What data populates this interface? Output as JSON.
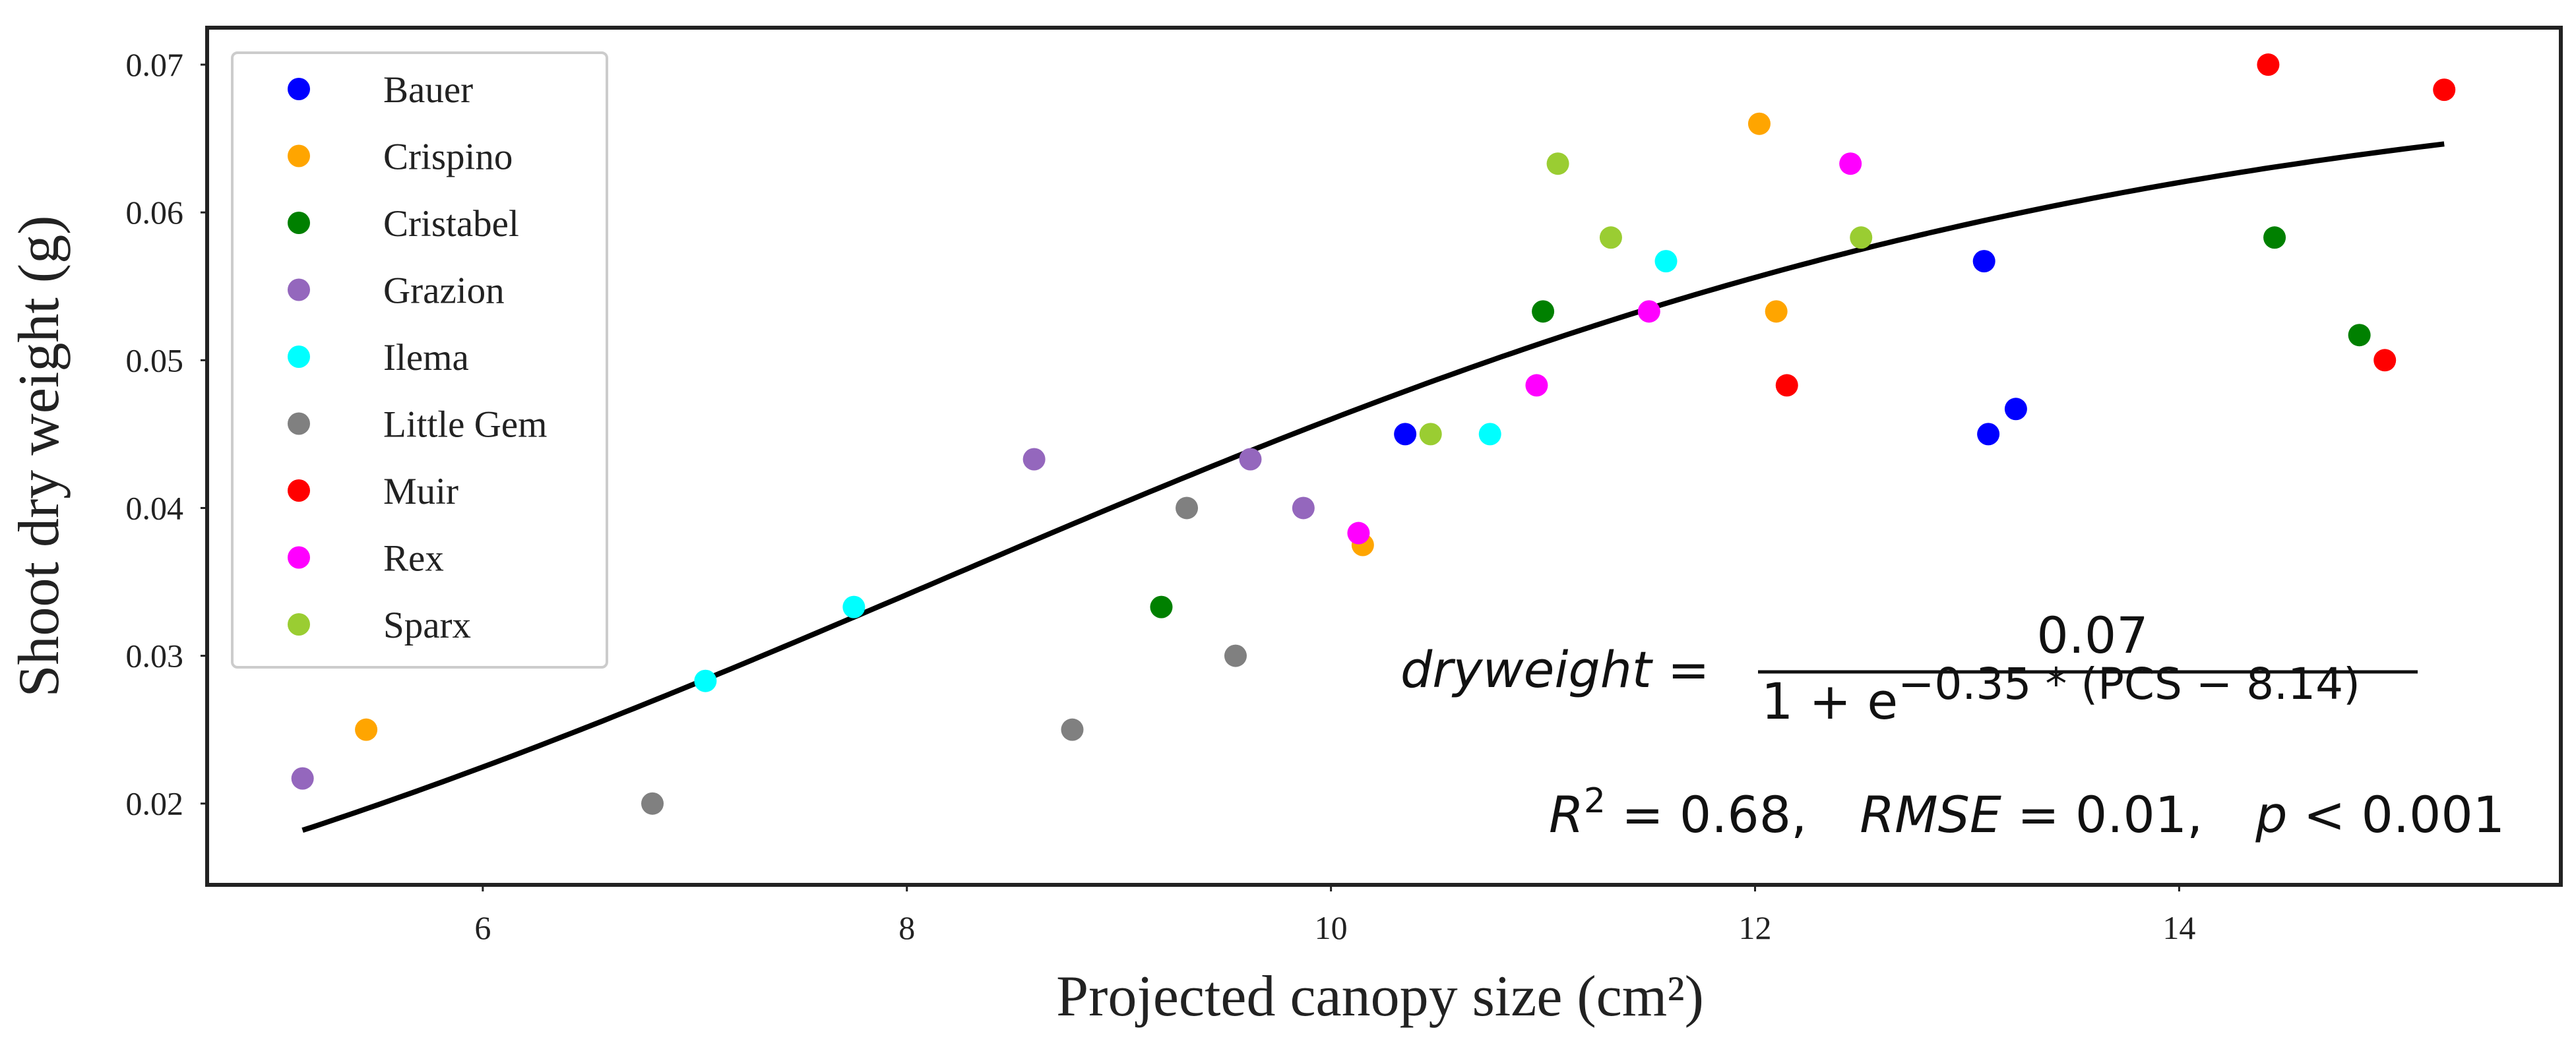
{
  "chart_data": {
    "type": "scatter",
    "title": "",
    "xlabel": "Projected canopy size (cm²)",
    "ylabel": "Shoot dry weight (g)",
    "xlim": [
      4.7,
      15.8
    ],
    "ylim": [
      0.0145,
      0.0725
    ],
    "xticks": [
      6,
      8,
      10,
      12,
      14
    ],
    "xtick_labels": [
      "6",
      "8",
      "10",
      "12",
      "14"
    ],
    "yticks": [
      0.02,
      0.03,
      0.04,
      0.05,
      0.06,
      0.07
    ],
    "ytick_labels": [
      "0.02",
      "0.03",
      "0.04",
      "0.05",
      "0.06",
      "0.07"
    ],
    "grid": false,
    "legend_position": "top-left",
    "series": [
      {
        "name": "Bauer",
        "color": "#0000ff",
        "points": [
          [
            10.35,
            0.045
          ],
          [
            13.08,
            0.0567
          ],
          [
            13.1,
            0.045
          ],
          [
            13.23,
            0.0467
          ]
        ]
      },
      {
        "name": "Crispino",
        "color": "#ffa500",
        "points": [
          [
            5.45,
            0.025
          ],
          [
            10.15,
            0.0375
          ],
          [
            12.02,
            0.066
          ],
          [
            12.1,
            0.0533
          ]
        ]
      },
      {
        "name": "Cristabel",
        "color": "#008000",
        "points": [
          [
            9.2,
            0.0333
          ],
          [
            11.0,
            0.0533
          ],
          [
            14.45,
            0.0583
          ],
          [
            14.85,
            0.0517
          ]
        ]
      },
      {
        "name": "Grazion",
        "color": "#9467bd",
        "points": [
          [
            5.15,
            0.0217
          ],
          [
            8.6,
            0.0433
          ],
          [
            9.62,
            0.0433
          ],
          [
            9.87,
            0.04
          ]
        ]
      },
      {
        "name": "Ilema",
        "color": "#00ffff",
        "points": [
          [
            7.05,
            0.0283
          ],
          [
            7.75,
            0.0333
          ],
          [
            10.75,
            0.045
          ],
          [
            11.58,
            0.0567
          ]
        ]
      },
      {
        "name": "Little Gem",
        "color": "#808080",
        "points": [
          [
            6.8,
            0.02
          ],
          [
            8.78,
            0.025
          ],
          [
            9.32,
            0.04
          ],
          [
            9.55,
            0.03
          ]
        ]
      },
      {
        "name": "Muir",
        "color": "#ff0000",
        "points": [
          [
            12.15,
            0.0483
          ],
          [
            14.42,
            0.07
          ],
          [
            14.97,
            0.05
          ],
          [
            15.25,
            0.0683
          ]
        ]
      },
      {
        "name": "Rex",
        "color": "#ff00ff",
        "points": [
          [
            10.13,
            0.0383
          ],
          [
            10.97,
            0.0483
          ],
          [
            11.5,
            0.0533
          ],
          [
            12.45,
            0.0633
          ]
        ]
      },
      {
        "name": "Sparx",
        "color": "#9acd32",
        "points": [
          [
            10.47,
            0.045
          ],
          [
            11.07,
            0.0633
          ],
          [
            11.32,
            0.0583
          ],
          [
            12.5,
            0.0583
          ]
        ]
      }
    ],
    "fit": {
      "type": "logistic",
      "L": 0.07,
      "k": 0.35,
      "x0": 8.14,
      "x_range": [
        5.15,
        15.25
      ],
      "color": "#000000",
      "label_lhs": "dryweight =",
      "numerator": "0.07",
      "denominator_base": "1 + e",
      "denominator_exponent": "−0.35 * (PCS − 8.14)"
    },
    "stats": {
      "r2_label": "R",
      "r2_superscript": "2",
      "r2_value": " = 0.68,",
      "rmse_label": "RMSE",
      "rmse_value": " = 0.01,",
      "p_label": "p",
      "p_value": " < 0.001"
    }
  }
}
